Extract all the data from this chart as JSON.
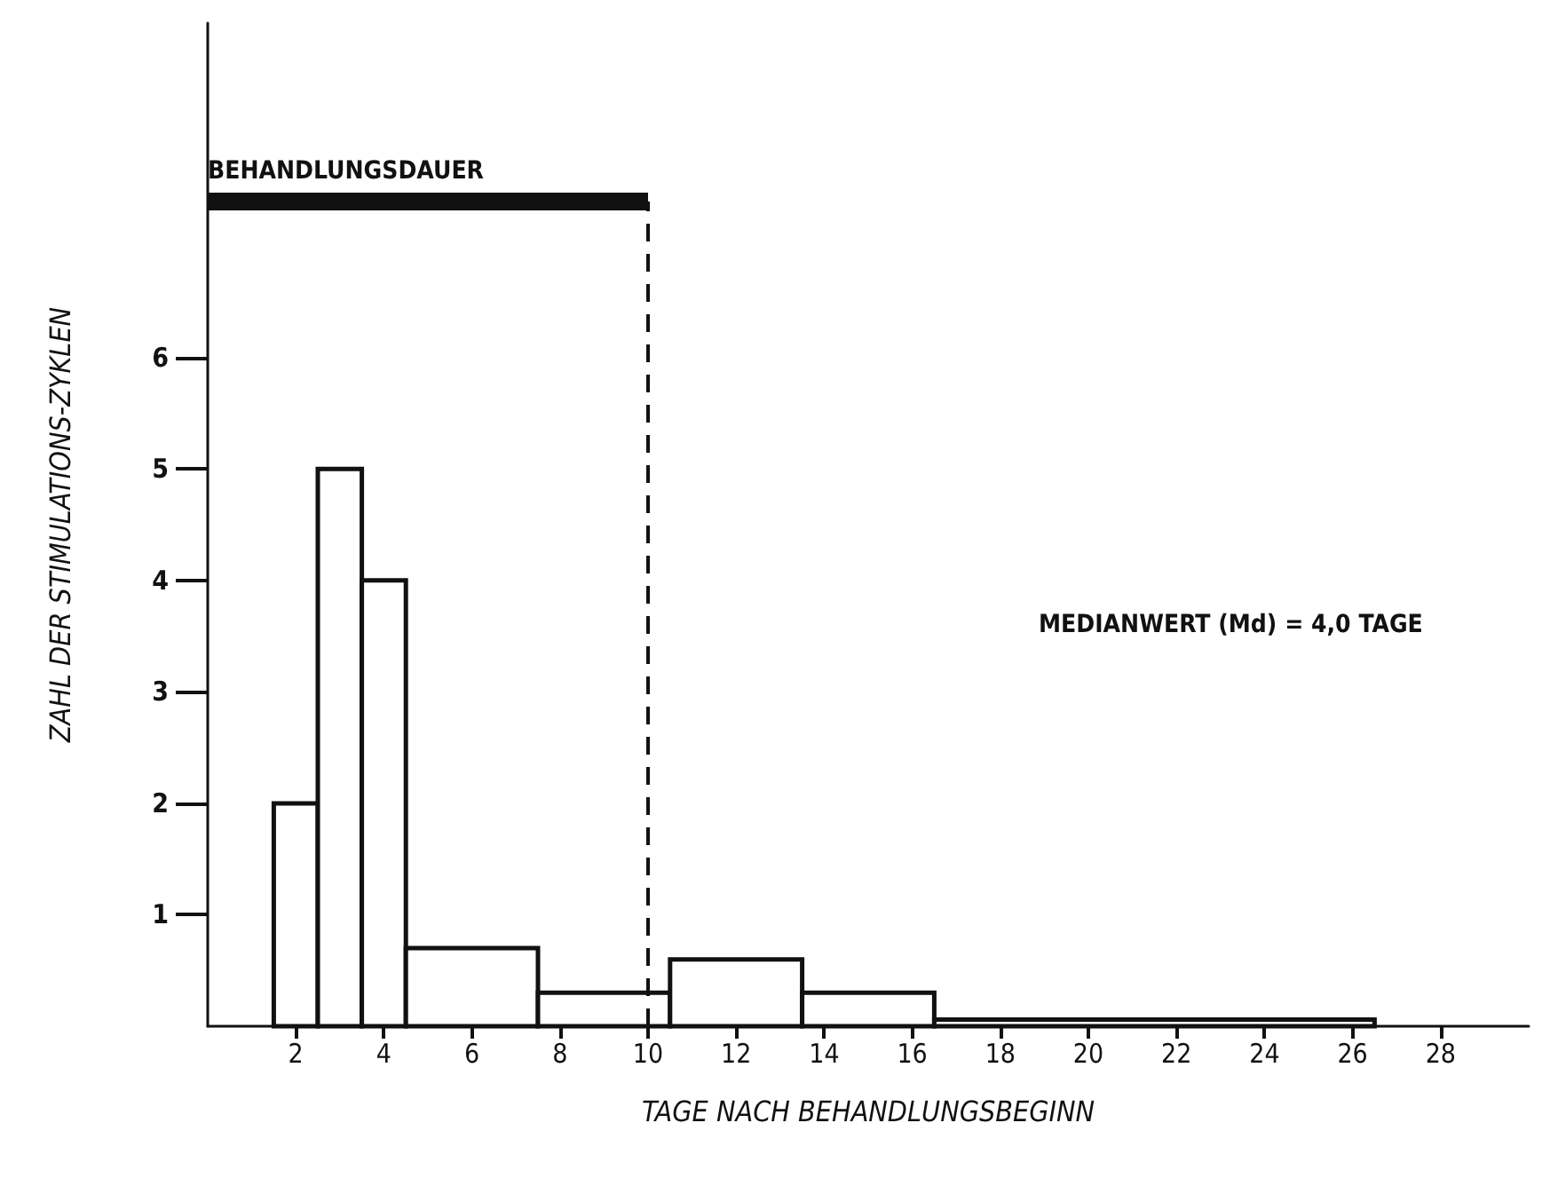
{
  "chart_data": {
    "type": "histogram",
    "xlabel": "TAGE NACH BEHANDLUNGSBEGINN",
    "ylabel": "ZAHL DER STIMULATIONS-ZYKLEN",
    "bins": [
      1.5,
      2.5,
      3.5,
      4.5,
      7.5,
      10.5,
      13.5,
      16.5,
      26.5
    ],
    "values": [
      2,
      5,
      4,
      0.7,
      0.3,
      0.6,
      0.3,
      0.06
    ],
    "color": "#ffffff",
    "series": [
      {
        "type": "line",
        "name": "BEHANDLUNGSDAUER",
        "color": "#111111",
        "x": [
          0,
          10
        ],
        "values": [
          7.4,
          7.4
        ],
        "marker": "none"
      }
    ],
    "xlim": [
      0,
      30
    ],
    "xticks": [
      2,
      4,
      6,
      8,
      10,
      12,
      14,
      16,
      18,
      20,
      22,
      24,
      26,
      28
    ],
    "ylim": [
      0,
      9
    ],
    "yticks": [
      1,
      2,
      3,
      4,
      5,
      6
    ],
    "ref_lines": [
      {
        "axis": "x",
        "value": 10,
        "line_style": "dashed",
        "color": "#111111"
      }
    ],
    "annotations": [
      "MEDIANWERT (Md) = 4,0 TAGE"
    ],
    "grid": false,
    "legend": false
  }
}
